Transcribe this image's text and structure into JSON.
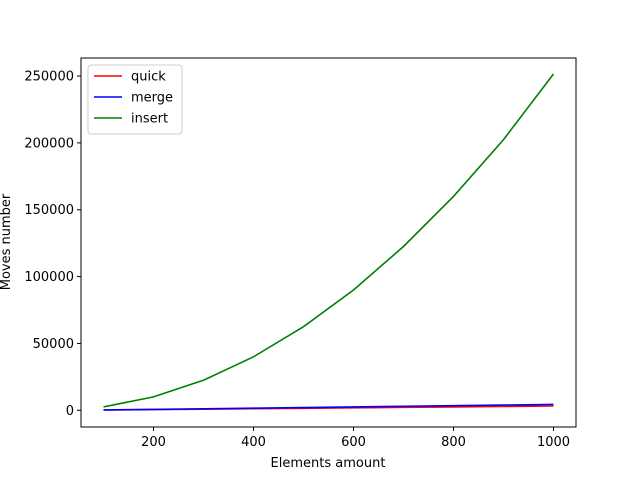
{
  "chart_data": {
    "type": "line",
    "xlabel": "Elements amount",
    "ylabel": "Moves number",
    "xlim": [
      55,
      1045
    ],
    "ylim": [
      -12500,
      263500
    ],
    "xticks": [
      200,
      400,
      600,
      800,
      1000
    ],
    "yticks": [
      0,
      50000,
      100000,
      150000,
      200000,
      250000
    ],
    "grid": false,
    "legend_position": "top-left",
    "x": [
      100,
      200,
      300,
      400,
      500,
      600,
      700,
      800,
      900,
      1000
    ],
    "series": [
      {
        "name": "quick",
        "color": "#ff0000",
        "values": [
          250,
          550,
          850,
          1200,
          1500,
          1850,
          2200,
          2500,
          2850,
          3200
        ]
      },
      {
        "name": "merge",
        "color": "#0000ff",
        "values": [
          300,
          700,
          1150,
          1550,
          2000,
          2500,
          3000,
          3450,
          3900,
          4400
        ]
      },
      {
        "name": "insert",
        "color": "#008000",
        "values": [
          2500,
          10000,
          22500,
          40000,
          62500,
          90000,
          122500,
          160000,
          202500,
          251500
        ]
      }
    ]
  }
}
